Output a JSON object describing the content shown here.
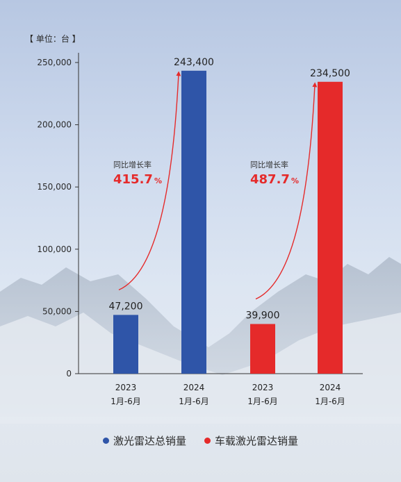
{
  "unit_label": "【 单位：台 】",
  "colors": {
    "total": "#2f55a8",
    "vehicle": "#e52a2a",
    "arrow": "#e52a2a",
    "axis": "#333333"
  },
  "chart_data": {
    "type": "bar",
    "title": "",
    "ylabel": "单位：台",
    "ylim": [
      0,
      250000
    ],
    "yticks": [
      0,
      50000,
      100000,
      150000,
      200000,
      250000
    ],
    "ytick_labels": [
      "0",
      "50,000",
      "100,000",
      "150,000",
      "200,000",
      "250,000"
    ],
    "grid": false,
    "legend_position": "bottom-center",
    "groups": [
      {
        "series": "激光雷达总销量",
        "color": "#2f55a8",
        "growth_label": "同比增长率",
        "growth_value": "415.7",
        "growth_unit": "%",
        "bars": [
          {
            "year": "2023",
            "period": "1月-6月",
            "value": 47200,
            "label": "47,200"
          },
          {
            "year": "2024",
            "period": "1月-6月",
            "value": 243400,
            "label": "243,400"
          }
        ]
      },
      {
        "series": "车载激光雷达销量",
        "color": "#e52a2a",
        "growth_label": "同比增长率",
        "growth_value": "487.7",
        "growth_unit": "%",
        "bars": [
          {
            "year": "2023",
            "period": "1月-6月",
            "value": 39900,
            "label": "39,900"
          },
          {
            "year": "2024",
            "period": "1月-6月",
            "value": 234500,
            "label": "234,500"
          }
        ]
      }
    ]
  },
  "legend": [
    {
      "label": "激光雷达总销量",
      "color": "#2f55a8"
    },
    {
      "label": "车载激光雷达销量",
      "color": "#e52a2a"
    }
  ]
}
